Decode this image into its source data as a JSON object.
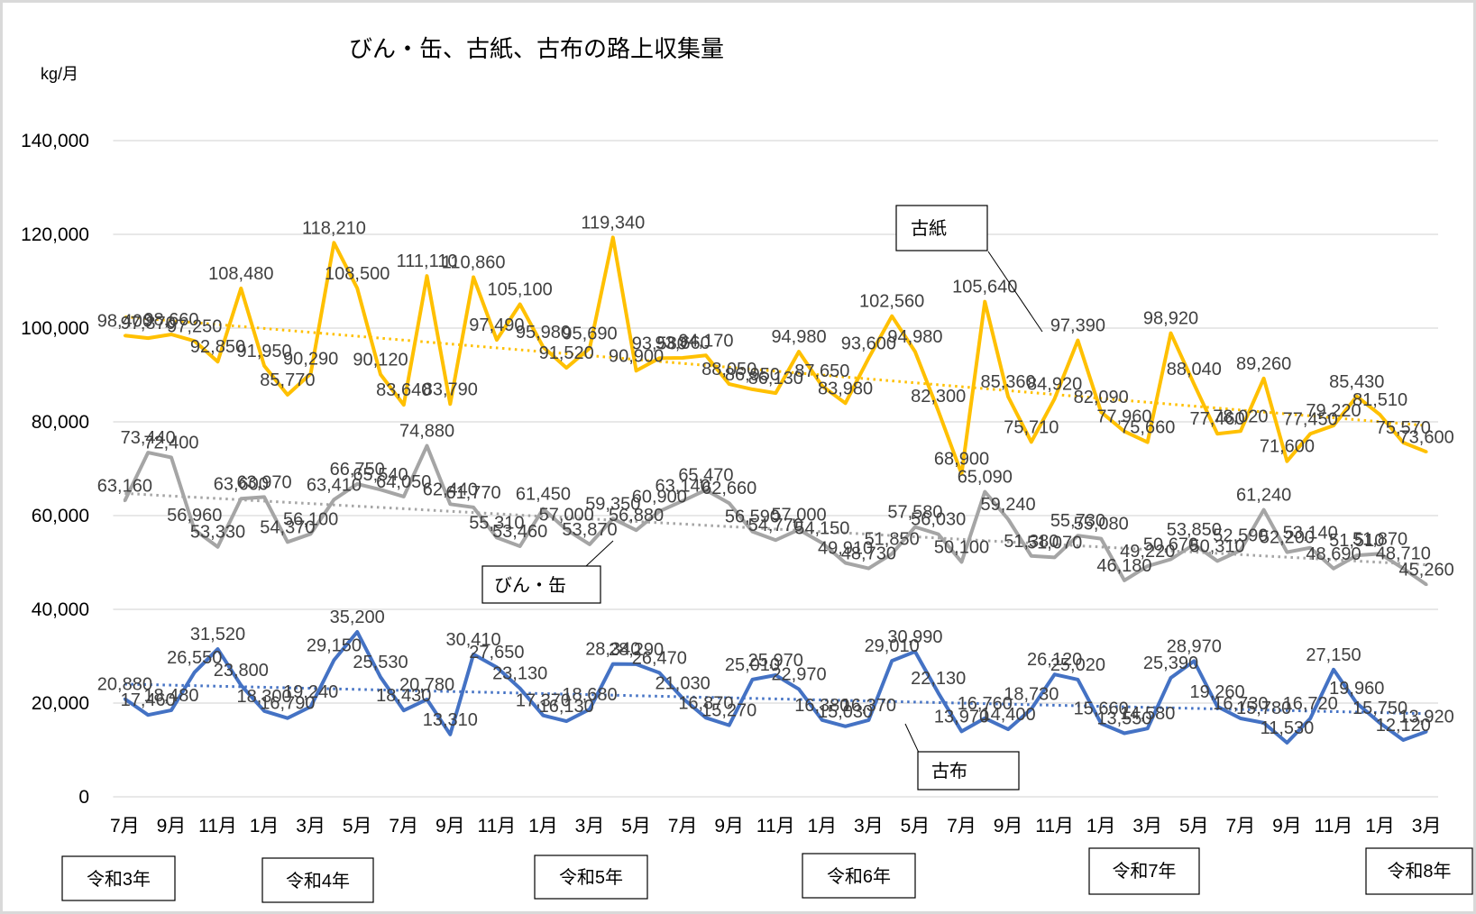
{
  "chart_data": {
    "type": "line",
    "title": "びん・缶、古紙、古布の路上収集量",
    "ylabel": "kg/月",
    "xlabel": "",
    "ylim": [
      0,
      140000
    ],
    "yticks": [
      0,
      20000,
      40000,
      60000,
      80000,
      100000,
      120000,
      140000
    ],
    "ytick_labels": [
      "0",
      "20,000",
      "40,000",
      "60,000",
      "80,000",
      "100,000",
      "120,000",
      "140,000"
    ],
    "categories": [
      "7月",
      "8月",
      "9月",
      "10月",
      "11月",
      "12月",
      "1月",
      "2月",
      "3月",
      "4月",
      "5月",
      "6月",
      "7月",
      "8月",
      "9月",
      "10月",
      "11月",
      "12月",
      "1月",
      "2月",
      "3月",
      "4月",
      "5月",
      "6月",
      "7月",
      "8月",
      "9月",
      "10月",
      "11月",
      "12月",
      "1月",
      "2月",
      "3月",
      "4月",
      "5月",
      "6月",
      "7月",
      "8月",
      "9月",
      "10月",
      "11月",
      "12月",
      "1月",
      "2月",
      "3月",
      "4月",
      "5月",
      "6月",
      "7月",
      "8月",
      "9月",
      "10月",
      "11月",
      "12月",
      "1月",
      "2月",
      "3月"
    ],
    "xtick_step": 2,
    "year_labels": [
      "令和3年",
      "令和4年",
      "令和5年",
      "令和6年",
      "令和7年",
      "令和8年"
    ],
    "grid": true,
    "legend": "none (series named by callout boxes)",
    "series": [
      {
        "name": "古紙",
        "color": "#FFC000",
        "trendline": "linear",
        "values": [
          98400,
          97870,
          98660,
          97250,
          92850,
          108480,
          91950,
          85770,
          90290,
          118210,
          108500,
          90120,
          83640,
          111110,
          83790,
          110860,
          97490,
          105100,
          95980,
          91520,
          95690,
          119340,
          90900,
          93580,
          93660,
          94170,
          88050,
          86950,
          86130,
          94980,
          87650,
          83980,
          93600,
          102560,
          94980,
          82300,
          68900,
          105640,
          85360,
          75710,
          84920,
          97390,
          82090,
          77960,
          75660,
          98920,
          88040,
          77460,
          78020,
          89260,
          71600,
          77450,
          79220,
          85430,
          81510,
          75570,
          73600
        ],
        "labels": [
          "98,400",
          "97,870",
          "98,660",
          "97,250",
          "92,850",
          "108,480",
          "91,950",
          "85,770",
          "90,290",
          "118,210",
          "108,500",
          "90,120",
          "83,640",
          "111,110",
          "83,790",
          "110,860",
          "97,490",
          "105,100",
          "95,980",
          "91,520",
          "95,690",
          "119,340",
          "90,900",
          "93,580",
          "93,660",
          "94,170",
          "88,050",
          "86,950",
          "86,130",
          "94,980",
          "87,650",
          "83,980",
          "93,600",
          "102,560",
          "94,980",
          "82,300",
          "68,900",
          "105,640",
          "85,360",
          "75,710",
          "84,920",
          "97,390",
          "82,090",
          "77,960",
          "75,660",
          "98,920",
          "88,040",
          "77,460",
          "78,020",
          "89,260",
          "71,600",
          "77,450",
          "79,220",
          "85,430",
          "81,510",
          "75,570",
          "73,600"
        ]
      },
      {
        "name": "びん・缶",
        "color": "#A5A5A5",
        "trendline": "linear",
        "values": [
          63160,
          73440,
          72400,
          56960,
          53330,
          63600,
          63970,
          54370,
          56100,
          63410,
          66750,
          65540,
          64050,
          74880,
          62440,
          61770,
          55310,
          53460,
          61450,
          57000,
          53870,
          59350,
          56880,
          60900,
          63140,
          65470,
          62660,
          56590,
          54770,
          57000,
          54150,
          49910,
          48730,
          51850,
          57580,
          56030,
          50100,
          65090,
          59240,
          51380,
          51070,
          55730,
          55080,
          46180,
          49220,
          50670,
          53850,
          50310,
          52590,
          61240,
          52200,
          53140,
          48690,
          51510,
          51870,
          48710,
          45260
        ],
        "labels": [
          "63,160",
          "73,440",
          "72,400",
          "56,960",
          "53,330",
          "63,600",
          "63,970",
          "54,370",
          "56,100",
          "63,410",
          "66,750",
          "65,540",
          "64,050",
          "74,880",
          "62,440",
          "61,770",
          "55,310",
          "53,460",
          "61,450",
          "57,000",
          "53,870",
          "59,350",
          "56,880",
          "60,900",
          "63,140",
          "65,470",
          "62,660",
          "56,590",
          "54,770",
          "57,000",
          "54,150",
          "49,910",
          "48,730",
          "51,850",
          "57,580",
          "56,030",
          "50,100",
          "65,090",
          "59,240",
          "51,380",
          "51,070",
          "55,730",
          "55,080",
          "46,180",
          "49,220",
          "50,670",
          "53,850",
          "50,310",
          "52,590",
          "61,240",
          "52,200",
          "53,140",
          "48,690",
          "51,510",
          "51,870",
          "48,710",
          "45,260"
        ]
      },
      {
        "name": "古布",
        "color": "#4472C4",
        "trendline": "linear",
        "values": [
          20880,
          17460,
          18480,
          26550,
          31520,
          23800,
          18300,
          16790,
          19240,
          29150,
          35200,
          25530,
          18430,
          20780,
          13310,
          30410,
          27650,
          23130,
          17370,
          16130,
          18680,
          28340,
          28290,
          26470,
          21030,
          16870,
          15270,
          25010,
          25970,
          22970,
          16380,
          15030,
          16370,
          29010,
          30990,
          22130,
          13970,
          16760,
          14400,
          18730,
          26120,
          25020,
          15660,
          13550,
          14580,
          25390,
          28970,
          19260,
          16730,
          15780,
          11530,
          16720,
          27150,
          19960,
          15750,
          12120,
          13920
        ],
        "labels": [
          "20,880",
          "17,460",
          "18,480",
          "26,550",
          "31,520",
          "23,800",
          "18,300",
          "16,790",
          "19,240",
          "29,150",
          "35,200",
          "25,530",
          "18,430",
          "20,780",
          "13,310",
          "30,410",
          "27,650",
          "23,130",
          "17,370",
          "16,130",
          "18,680",
          "28,340",
          "28,290",
          "26,470",
          "21,030",
          "16,870",
          "15,270",
          "25,010",
          "25,970",
          "22,970",
          "16,380",
          "15,030",
          "16,370",
          "29,010",
          "30,990",
          "22,130",
          "13,970",
          "16,760",
          "14,400",
          "18,730",
          "26,120",
          "25,020",
          "15,660",
          "13,550",
          "14,580",
          "25,390",
          "28,970",
          "19,260",
          "16,730",
          "15,780",
          "11,530",
          "16,720",
          "27,150",
          "19,960",
          "15,750",
          "12,120",
          "13,920"
        ]
      }
    ]
  }
}
